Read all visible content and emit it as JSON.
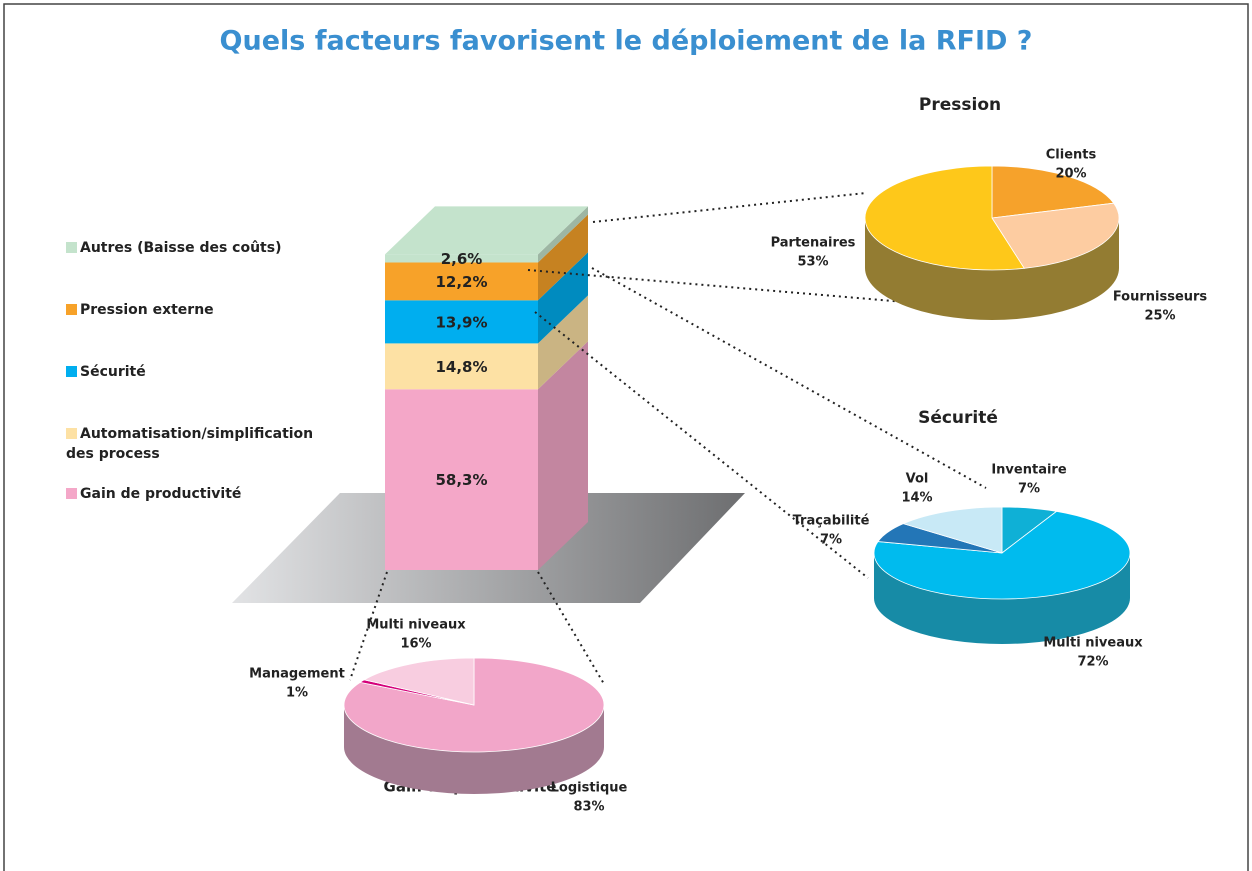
{
  "chart_data": [
    {
      "type": "stacked-bar",
      "title": "Quels facteurs favorisent le déploiement de la RFID ?",
      "series": [
        {
          "name": "Gain de productivité",
          "color": "#f4a7c8",
          "values": [
            58.3
          ],
          "value_labels": [
            "58,3%"
          ]
        },
        {
          "name": "Automatisation/simplification des process",
          "color": "#fde1a4",
          "values": [
            14.8
          ],
          "value_labels": [
            "14,8%"
          ]
        },
        {
          "name": "Sécurité",
          "color": "#00aeef",
          "values": [
            13.9
          ],
          "value_labels": [
            "13,9%"
          ]
        },
        {
          "name": "Pression externe",
          "color": "#f7a229",
          "values": [
            12.2
          ],
          "value_labels": [
            "12,2%"
          ]
        },
        {
          "name": "Autres (Baisse des coûts)",
          "color": "#c4e3cc",
          "values": [
            2.6
          ],
          "value_labels": [
            "2,6%"
          ]
        }
      ]
    },
    {
      "type": "pie",
      "title": "Pression",
      "categories": [
        "Clients",
        "Fournisseurs",
        "Partenaires"
      ],
      "values": [
        20,
        25,
        53
      ],
      "value_labels": [
        "20%",
        "25%",
        "53%"
      ],
      "colors": [
        "#f6a22b",
        "#fdcca1",
        "#fec81a"
      ],
      "side_color": "#937c32"
    },
    {
      "type": "pie",
      "title": "Sécurité",
      "categories": [
        "Inventaire",
        "Multi niveaux",
        "Traçabilité",
        "Vol"
      ],
      "values": [
        7,
        72,
        7,
        14
      ],
      "value_labels": [
        "7%",
        "72%",
        "7%",
        "14%"
      ],
      "colors": [
        "#0fb0d6",
        "#00bbee",
        "#2376b7",
        "#c8e9f6"
      ],
      "side_color": "#178ba6"
    },
    {
      "type": "pie",
      "title": "Gain de productivité",
      "categories": [
        "Logistique",
        "Management",
        "Multi niveaux"
      ],
      "values": [
        83,
        1,
        16
      ],
      "value_labels": [
        "83%",
        "1%",
        "16%"
      ],
      "colors": [
        "#f2a6c9",
        "#d4007a",
        "#f8cde0"
      ],
      "side_color": "#a27a90"
    }
  ]
}
